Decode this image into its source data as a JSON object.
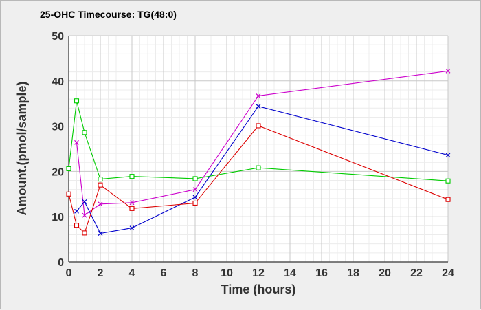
{
  "chart_data": {
    "type": "line",
    "title": "25-OHC Timecourse: TG(48:0)",
    "xlabel": "Time (hours)",
    "ylabel": "Amount.(pmol/sample)",
    "xlim": [
      0,
      24
    ],
    "ylim": [
      0,
      50
    ],
    "xticks": [
      0,
      2,
      4,
      6,
      8,
      10,
      12,
      14,
      16,
      18,
      20,
      22,
      24
    ],
    "yticks": [
      0,
      10,
      20,
      30,
      40,
      50
    ],
    "grid": true,
    "legend": "none",
    "series": [
      {
        "color": "#00cc00",
        "marker": "square",
        "points": [
          [
            0,
            20.6
          ],
          [
            0.5,
            35.6
          ],
          [
            1,
            28.6
          ],
          [
            2,
            18.3
          ],
          [
            4,
            18.9
          ],
          [
            8,
            18.4
          ],
          [
            12,
            20.8
          ],
          [
            24,
            17.9
          ]
        ]
      },
      {
        "color": "#cc00cc",
        "marker": "x",
        "points": [
          [
            0.5,
            26.4
          ],
          [
            1,
            10.3
          ],
          [
            2,
            12.8
          ],
          [
            4,
            13.1
          ],
          [
            8,
            16.0
          ],
          [
            12,
            36.7
          ],
          [
            24,
            42.2
          ]
        ]
      },
      {
        "color": "#0000cc",
        "marker": "x",
        "points": [
          [
            0.5,
            11.2
          ],
          [
            1,
            13.3
          ],
          [
            2,
            6.3
          ],
          [
            4,
            7.5
          ],
          [
            8,
            14.3
          ],
          [
            12,
            34.4
          ],
          [
            24,
            23.6
          ]
        ]
      },
      {
        "color": "#dd0000",
        "marker": "square",
        "points": [
          [
            0,
            15.0
          ],
          [
            0.5,
            8.1
          ],
          [
            1,
            6.4
          ],
          [
            2,
            17.0
          ],
          [
            4,
            11.8
          ],
          [
            8,
            13.0
          ],
          [
            12,
            30.1
          ],
          [
            24,
            13.8
          ]
        ]
      }
    ]
  }
}
